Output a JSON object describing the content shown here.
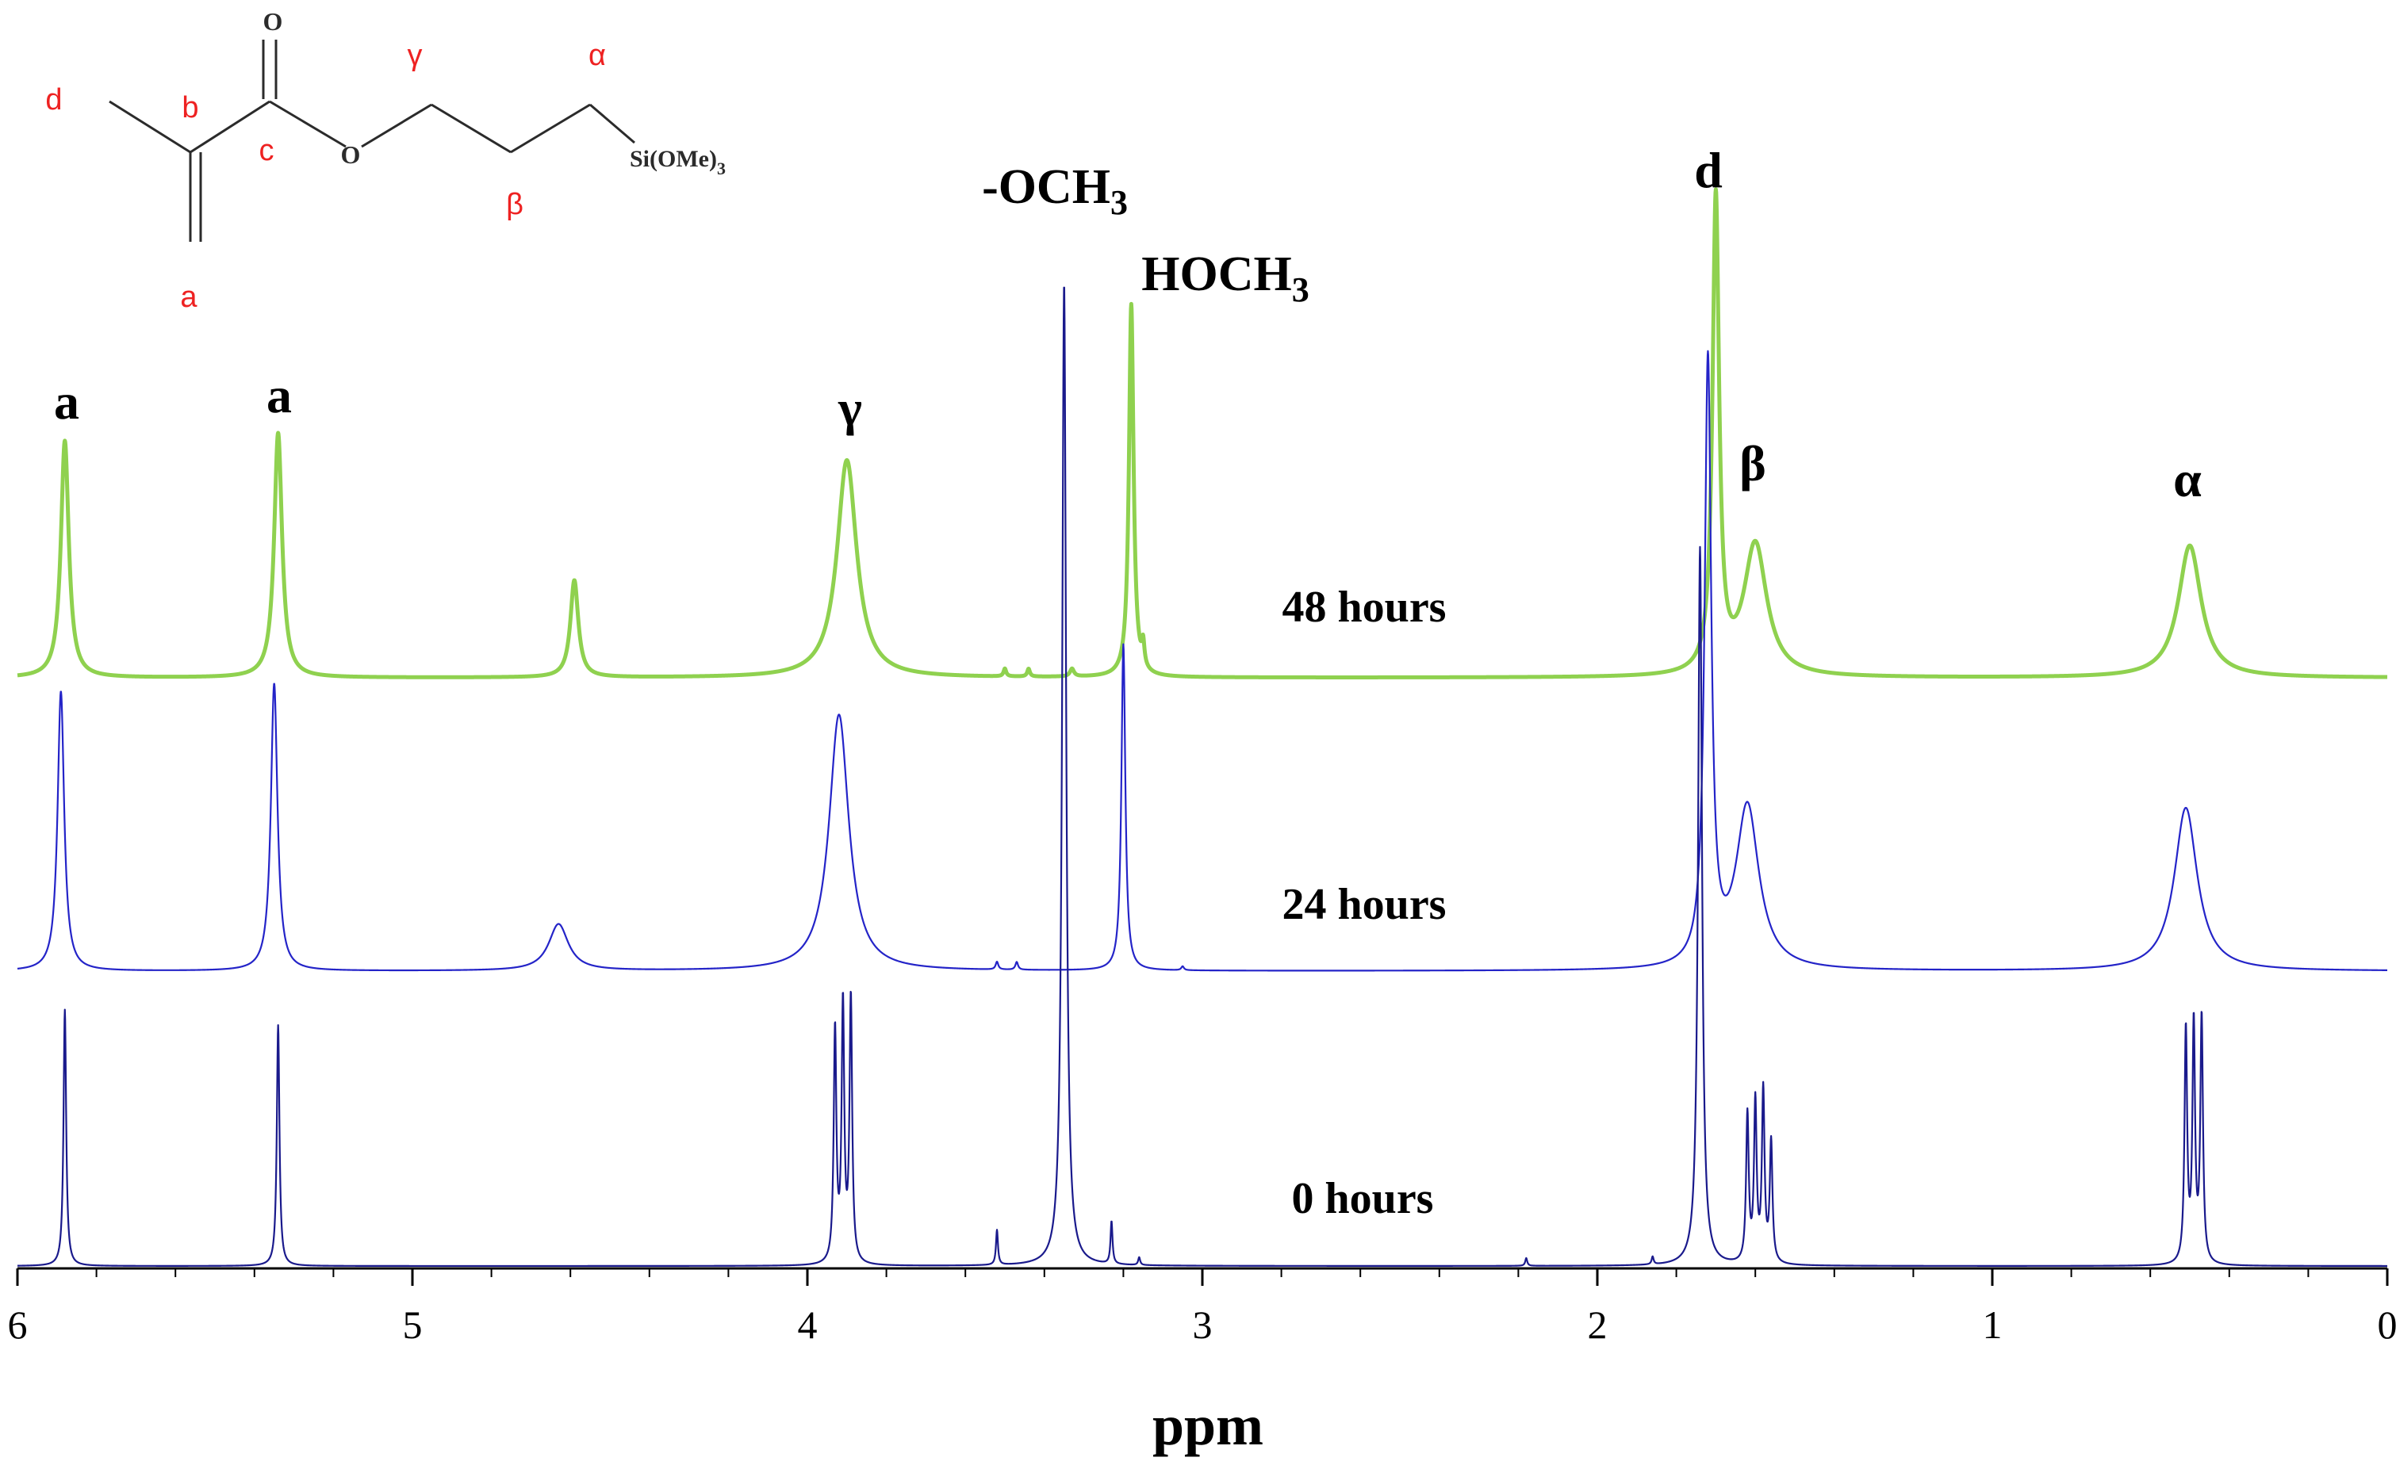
{
  "chart_data": {
    "type": "line",
    "title": "",
    "xlabel": "ppm",
    "ylabel": "",
    "xlim": [
      6,
      0
    ],
    "x_reversed": true,
    "x_ticks": [
      6,
      5,
      4,
      3,
      2,
      1,
      0
    ],
    "x_tick_labels": [
      "6",
      "5",
      "4",
      "3",
      "2",
      "1",
      "0"
    ],
    "grid": false,
    "series": [
      {
        "name": "48 hours",
        "color": "#8fd14f",
        "peaks": [
          {
            "ppm": 5.88,
            "height": 0.61,
            "width": 0.012
          },
          {
            "ppm": 5.34,
            "height": 0.63,
            "width": 0.012
          },
          {
            "ppm": 4.59,
            "height": 0.25,
            "width": 0.012
          },
          {
            "ppm": 3.9,
            "height": 0.56,
            "width": 0.03
          },
          {
            "ppm": 3.5,
            "height": 0.02,
            "width": 0.004
          },
          {
            "ppm": 3.44,
            "height": 0.02,
            "width": 0.004
          },
          {
            "ppm": 3.33,
            "height": 0.02,
            "width": 0.006
          },
          {
            "ppm": 3.18,
            "height": 0.96,
            "width": 0.007
          },
          {
            "ppm": 3.15,
            "height": 0.06,
            "width": 0.004
          },
          {
            "ppm": 1.7,
            "height": 1.22,
            "width": 0.01
          },
          {
            "ppm": 1.6,
            "height": 0.34,
            "width": 0.035
          },
          {
            "ppm": 0.5,
            "height": 0.34,
            "width": 0.035
          }
        ]
      },
      {
        "name": "24 hours",
        "color": "#2424c8",
        "peaks": [
          {
            "ppm": 5.89,
            "height": 0.72,
            "width": 0.01
          },
          {
            "ppm": 5.35,
            "height": 0.74,
            "width": 0.01
          },
          {
            "ppm": 4.63,
            "height": 0.12,
            "width": 0.03
          },
          {
            "ppm": 3.92,
            "height": 0.66,
            "width": 0.03
          },
          {
            "ppm": 3.52,
            "height": 0.02,
            "width": 0.004
          },
          {
            "ppm": 3.47,
            "height": 0.02,
            "width": 0.004
          },
          {
            "ppm": 3.2,
            "height": 0.84,
            "width": 0.006
          },
          {
            "ppm": 3.05,
            "height": 0.01,
            "width": 0.004
          },
          {
            "ppm": 1.72,
            "height": 1.55,
            "width": 0.01
          },
          {
            "ppm": 1.62,
            "height": 0.42,
            "width": 0.035
          },
          {
            "ppm": 0.51,
            "height": 0.42,
            "width": 0.035
          }
        ]
      },
      {
        "name": "0 hours",
        "color": "#1a1a8c",
        "peaks": [
          {
            "ppm": 5.88,
            "height": 0.66,
            "width": 0.004
          },
          {
            "ppm": 5.34,
            "height": 0.62,
            "width": 0.004
          },
          {
            "ppm": 3.93,
            "height": 0.6,
            "width": 0.004
          },
          {
            "ppm": 3.91,
            "height": 0.66,
            "width": 0.004
          },
          {
            "ppm": 3.89,
            "height": 0.68,
            "width": 0.004
          },
          {
            "ppm": 3.52,
            "height": 0.09,
            "width": 0.003
          },
          {
            "ppm": 3.35,
            "height": 2.53,
            "width": 0.006
          },
          {
            "ppm": 3.23,
            "height": 0.11,
            "width": 0.003
          },
          {
            "ppm": 3.16,
            "height": 0.02,
            "width": 0.003
          },
          {
            "ppm": 2.18,
            "height": 0.02,
            "width": 0.003
          },
          {
            "ppm": 1.86,
            "height": 0.02,
            "width": 0.003
          },
          {
            "ppm": 1.74,
            "height": 1.85,
            "width": 0.006
          },
          {
            "ppm": 1.62,
            "height": 0.38,
            "width": 0.004
          },
          {
            "ppm": 1.6,
            "height": 0.41,
            "width": 0.004
          },
          {
            "ppm": 1.58,
            "height": 0.44,
            "width": 0.004
          },
          {
            "ppm": 1.56,
            "height": 0.31,
            "width": 0.004
          },
          {
            "ppm": 0.51,
            "height": 0.6,
            "width": 0.004
          },
          {
            "ppm": 0.49,
            "height": 0.61,
            "width": 0.004
          },
          {
            "ppm": 0.47,
            "height": 0.63,
            "width": 0.004
          }
        ]
      }
    ],
    "annotations": [
      "a",
      "a",
      "γ",
      "-OCH3",
      "HOCH3",
      "d",
      "β",
      "α"
    ]
  },
  "annotations": {
    "a1": "a",
    "a2": "a",
    "gamma": "γ",
    "och3": "-OCH",
    "och3_sub": "3",
    "hoch3": "HOCH",
    "hoch3_sub": "3",
    "d": "d",
    "beta": "β",
    "alpha": "α"
  },
  "time_labels": {
    "t48": "48 hours",
    "t24": "24 hours",
    "t0": "0 hours"
  },
  "structure": {
    "label_d": "d",
    "label_b": "b",
    "label_c": "c",
    "label_a": "a",
    "label_gamma": "γ",
    "label_beta": "β",
    "label_alpha": "α",
    "atom_o_carbonyl": "O",
    "atom_o_ester": "O",
    "silyl": "Si(OMe)",
    "silyl_sub": "3",
    "label_color": "#ee2222"
  }
}
